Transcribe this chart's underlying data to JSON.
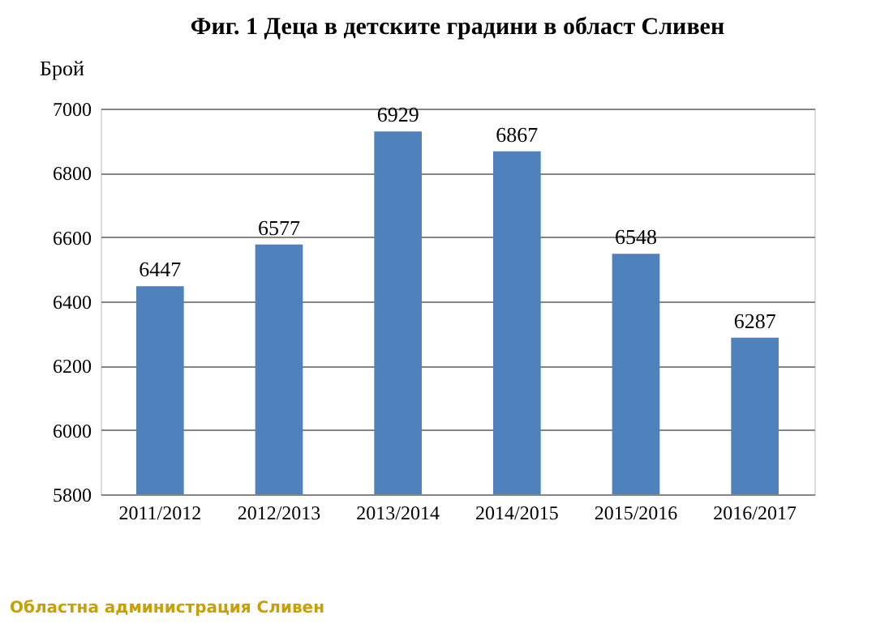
{
  "chart_data": {
    "type": "bar",
    "title": "Фиг. 1 Деца в детските градини в област Сливен",
    "ylabel": "Брой",
    "categories": [
      "2011/2012",
      "2012/2013",
      "2013/2014",
      "2014/2015",
      "2015/2016",
      "2016/2017"
    ],
    "values": [
      6447,
      6577,
      6929,
      6867,
      6548,
      6287
    ],
    "color": "#4f81bd",
    "ylim": [
      5800,
      7000
    ],
    "yticks": [
      5800,
      6000,
      6200,
      6400,
      6600,
      6800,
      7000
    ],
    "grid": "y",
    "data_labels": true,
    "annotations": [
      "Областна администрация Сливен"
    ]
  }
}
